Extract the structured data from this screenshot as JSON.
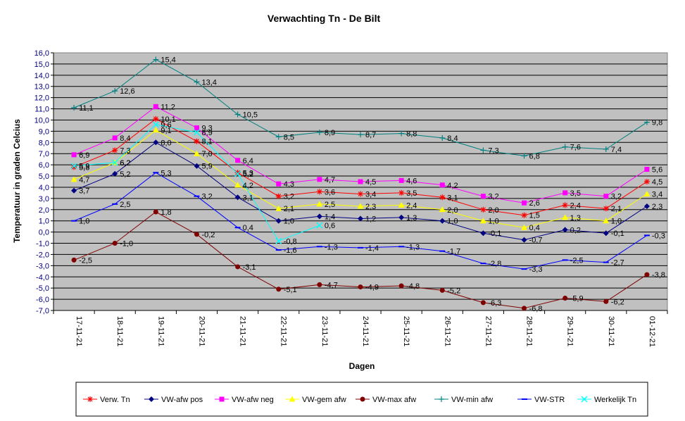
{
  "chart_data": {
    "type": "line",
    "title": "Verwachting Tn - De Bilt",
    "xlabel": "Dagen",
    "ylabel": "Temperatuur in graden Celcius",
    "categories": [
      "17-11-21",
      "18-11-21",
      "19-11-21",
      "20-11-21",
      "21-11-21",
      "22-11-21",
      "23-11-21",
      "24-11-21",
      "25-11-21",
      "26-11-21",
      "27-11-21",
      "28-11-21",
      "29-11-21",
      "30-11-21",
      "01-12-21"
    ],
    "ylim": [
      -7,
      16
    ],
    "ytick_step": 1,
    "ytick_labels": [
      "-7,0",
      "-6,0",
      "-5,0",
      "-4,0",
      "-3,0",
      "-2,0",
      "-1,0",
      "0,0",
      "1,0",
      "2,0",
      "3,0",
      "4,0",
      "5,0",
      "6,0",
      "7,0",
      "8,0",
      "9,0",
      "10,0",
      "11,0",
      "12,0",
      "13,0",
      "14,0",
      "15,0",
      "16,0"
    ],
    "grid": true,
    "plot_background": "#C0C0C0",
    "legend_position": "bottom",
    "series": [
      {
        "name": "Verw. Tn",
        "color": "#FF0000",
        "marker": "star",
        "values": [
          5.8,
          7.3,
          10.1,
          8.1,
          5.3,
          3.2,
          3.6,
          3.4,
          3.5,
          3.1,
          2.0,
          1.5,
          2.4,
          2.1,
          4.5
        ],
        "labels": [
          "5,8",
          "7,3",
          "10,1",
          "8,1",
          "5,3",
          "3,2",
          "3,6",
          "3,4",
          "3,5",
          "3,1",
          "2,0",
          "1,5",
          "2,4",
          "2,1",
          "4,5"
        ]
      },
      {
        "name": "VW-afw pos",
        "color": "#000080",
        "marker": "diamond",
        "values": [
          3.7,
          5.2,
          8.0,
          5.9,
          3.1,
          1.0,
          1.4,
          1.2,
          1.3,
          1.0,
          -0.1,
          -0.7,
          0.2,
          -0.1,
          2.3
        ],
        "labels": [
          "3,7",
          "5,2",
          "8,0",
          "5,9",
          "3,1",
          "1,0",
          "1,4",
          "1,2",
          "1,3",
          "1,0",
          "-0,1",
          "-0,7",
          "0,2",
          "-0,1",
          "2,3"
        ]
      },
      {
        "name": "VW-afw neg",
        "color": "#FF00FF",
        "marker": "square",
        "values": [
          6.9,
          8.4,
          11.2,
          9.3,
          6.4,
          4.3,
          4.7,
          4.5,
          4.6,
          4.2,
          3.2,
          2.6,
          3.5,
          3.2,
          5.6
        ],
        "labels": [
          "6,9",
          "8,4",
          "11,2",
          "9,3",
          "6,4",
          "4,3",
          "4,7",
          "4,5",
          "4,6",
          "4,2",
          "3,2",
          "2,6",
          "3,5",
          "3,2",
          "5,6"
        ]
      },
      {
        "name": "VW-gem afw",
        "color": "#FFFF00",
        "marker": "triangle",
        "values": [
          4.7,
          6.2,
          9.1,
          7.0,
          4.2,
          2.1,
          2.5,
          2.3,
          2.4,
          2.0,
          1.0,
          0.4,
          1.3,
          1.0,
          3.4
        ],
        "labels": [
          "4,7",
          "6,2",
          "9,1",
          "7,0",
          "4,2",
          "2,1",
          "2,5",
          "2,3",
          "2,4",
          "2,0",
          "1,0",
          "0,4",
          "1,3",
          "1,0",
          "3,4"
        ]
      },
      {
        "name": "VW-max afw",
        "color": "#800000",
        "marker": "circle",
        "values": [
          -2.5,
          -1.0,
          1.8,
          -0.2,
          -3.1,
          -5.1,
          -4.7,
          -4.9,
          -4.8,
          -5.2,
          -6.3,
          -6.8,
          -5.9,
          -6.2,
          -3.8
        ],
        "labels": [
          "-2,5",
          "-1,0",
          "1,8",
          "-0,2",
          "-3,1",
          "-5,1",
          "-4,7",
          "-4,9",
          "-4,8",
          "-5,2",
          "-6,3",
          "-6,8",
          "-5,9",
          "-6,2",
          "-3,8"
        ]
      },
      {
        "name": "VW-min afw",
        "color": "#008080",
        "marker": "plus",
        "values": [
          11.1,
          12.6,
          15.4,
          13.4,
          10.5,
          8.5,
          8.9,
          8.7,
          8.8,
          8.4,
          7.3,
          6.8,
          7.6,
          7.4,
          9.8
        ],
        "labels": [
          "11,1",
          "12,6",
          "15,4",
          "13,4",
          "10,5",
          "8,5",
          "8,9",
          "8,7",
          "8,8",
          "8,4",
          "7,3",
          "6,8",
          "7,6",
          "7,4",
          "9,8"
        ]
      },
      {
        "name": "VW-STR",
        "color": "#0000FF",
        "marker": "dash",
        "values": [
          1.0,
          2.5,
          5.3,
          3.2,
          0.4,
          -1.6,
          -1.3,
          -1.4,
          -1.3,
          -1.7,
          -2.8,
          -3.3,
          -2.5,
          -2.7,
          -0.3
        ],
        "labels": [
          "1,0",
          "2,5",
          "5,3",
          "3,2",
          "0,4",
          "-1,6",
          "-1,3",
          "-1,4",
          "-1,3",
          "-1,7",
          "-2,8",
          "-3,3",
          "-2,5",
          "-2,7",
          "-0,3"
        ]
      },
      {
        "name": "Werkelijk Tn",
        "color": "#00FFFF",
        "marker": "x",
        "values": [
          5.9,
          6.2,
          9.6,
          8.9,
          5.2,
          -0.8,
          0.6,
          null,
          null,
          null,
          null,
          null,
          null,
          null,
          null
        ],
        "labels": [
          "5,9",
          "6,2",
          "9,6",
          "8,9",
          "5,2",
          "-0,8",
          "0,6",
          "",
          "",
          "",
          "",
          "",
          "",
          "",
          ""
        ]
      }
    ]
  }
}
